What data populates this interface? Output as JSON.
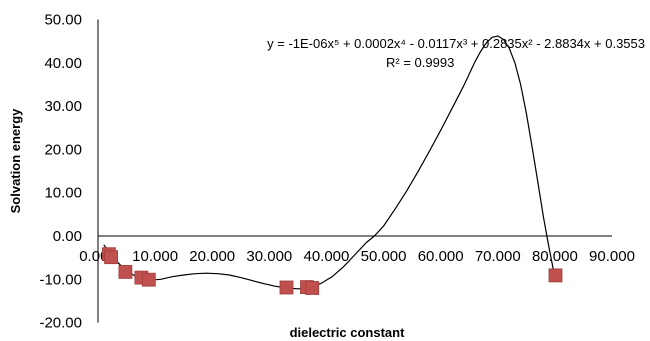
{
  "chart_data": {
    "type": "scatter",
    "xlabel": "dielectric constant",
    "ylabel": "Solvation energy",
    "xlim": [
      0,
      90
    ],
    "ylim": [
      -20,
      50
    ],
    "x_ticks": [
      "0.000",
      "10.000",
      "20.000",
      "30.000",
      "40.000",
      "50.000",
      "60.000",
      "70.000",
      "80.000",
      "90.000"
    ],
    "y_ticks": [
      "50.00",
      "40.00",
      "30.00",
      "20.00",
      "10.00",
      "0.00",
      "-10.00",
      "-20.00"
    ],
    "grid": false,
    "legend": "none",
    "marker": "square",
    "marker_color": "#c0504d",
    "line_color": "#000000",
    "series": [
      {
        "points": [
          {
            "x": 1.9,
            "y": -4.2
          },
          {
            "x": 2.3,
            "y": -4.9
          },
          {
            "x": 4.8,
            "y": -8.3
          },
          {
            "x": 7.6,
            "y": -9.6
          },
          {
            "x": 8.9,
            "y": -10.1
          },
          {
            "x": 33.0,
            "y": -11.9
          },
          {
            "x": 36.6,
            "y": -11.8
          },
          {
            "x": 37.5,
            "y": -12.0
          },
          {
            "x": 80.1,
            "y": -9.1
          }
        ]
      }
    ],
    "trendline": {
      "type": "polynomial",
      "order": 5,
      "equation": "y = -1E-06x⁵ + 0.0002x⁴ - 0.0117x³ + 0.2835x² - 2.8834x + 0.3553",
      "r_squared": "R² = 0.9993",
      "points": [
        [
          1.0,
          -2.0
        ],
        [
          3.0,
          -5.5
        ],
        [
          5.0,
          -8.1
        ],
        [
          7.0,
          -9.6
        ],
        [
          9.0,
          -10.2
        ],
        [
          11.0,
          -10.0
        ],
        [
          13.0,
          -9.4
        ],
        [
          15.0,
          -9.0
        ],
        [
          17.0,
          -8.7
        ],
        [
          19.0,
          -8.6
        ],
        [
          21.0,
          -8.7
        ],
        [
          23.0,
          -9.0
        ],
        [
          25.0,
          -9.6
        ],
        [
          27.0,
          -10.3
        ],
        [
          29.0,
          -11.0
        ],
        [
          31.0,
          -11.6
        ],
        [
          33.0,
          -12.0
        ],
        [
          35.0,
          -12.2
        ],
        [
          37.0,
          -12.0
        ],
        [
          39.0,
          -11.0
        ],
        [
          41.0,
          -9.4
        ],
        [
          43.0,
          -7.1
        ],
        [
          45.0,
          -4.3
        ],
        [
          47.0,
          -1.5
        ],
        [
          48.4,
          0.0
        ],
        [
          50.0,
          2.3
        ],
        [
          52.0,
          6.2
        ],
        [
          54.0,
          10.3
        ],
        [
          56.0,
          14.8
        ],
        [
          58.0,
          19.5
        ],
        [
          60.0,
          24.4
        ],
        [
          62.0,
          29.5
        ],
        [
          64.0,
          34.6
        ],
        [
          65.0,
          37.4
        ],
        [
          66.0,
          40.2
        ],
        [
          67.0,
          42.6
        ],
        [
          68.0,
          44.6
        ],
        [
          69.0,
          45.9
        ],
        [
          70.0,
          46.2
        ],
        [
          71.0,
          45.4
        ],
        [
          72.0,
          43.4
        ],
        [
          73.0,
          40.0
        ],
        [
          74.0,
          35.0
        ],
        [
          75.0,
          28.4
        ],
        [
          76.0,
          20.7
        ],
        [
          77.0,
          12.5
        ],
        [
          78.0,
          4.3
        ],
        [
          79.0,
          -2.9
        ],
        [
          79.8,
          -8.2
        ],
        [
          80.1,
          -9.6
        ]
      ]
    }
  }
}
